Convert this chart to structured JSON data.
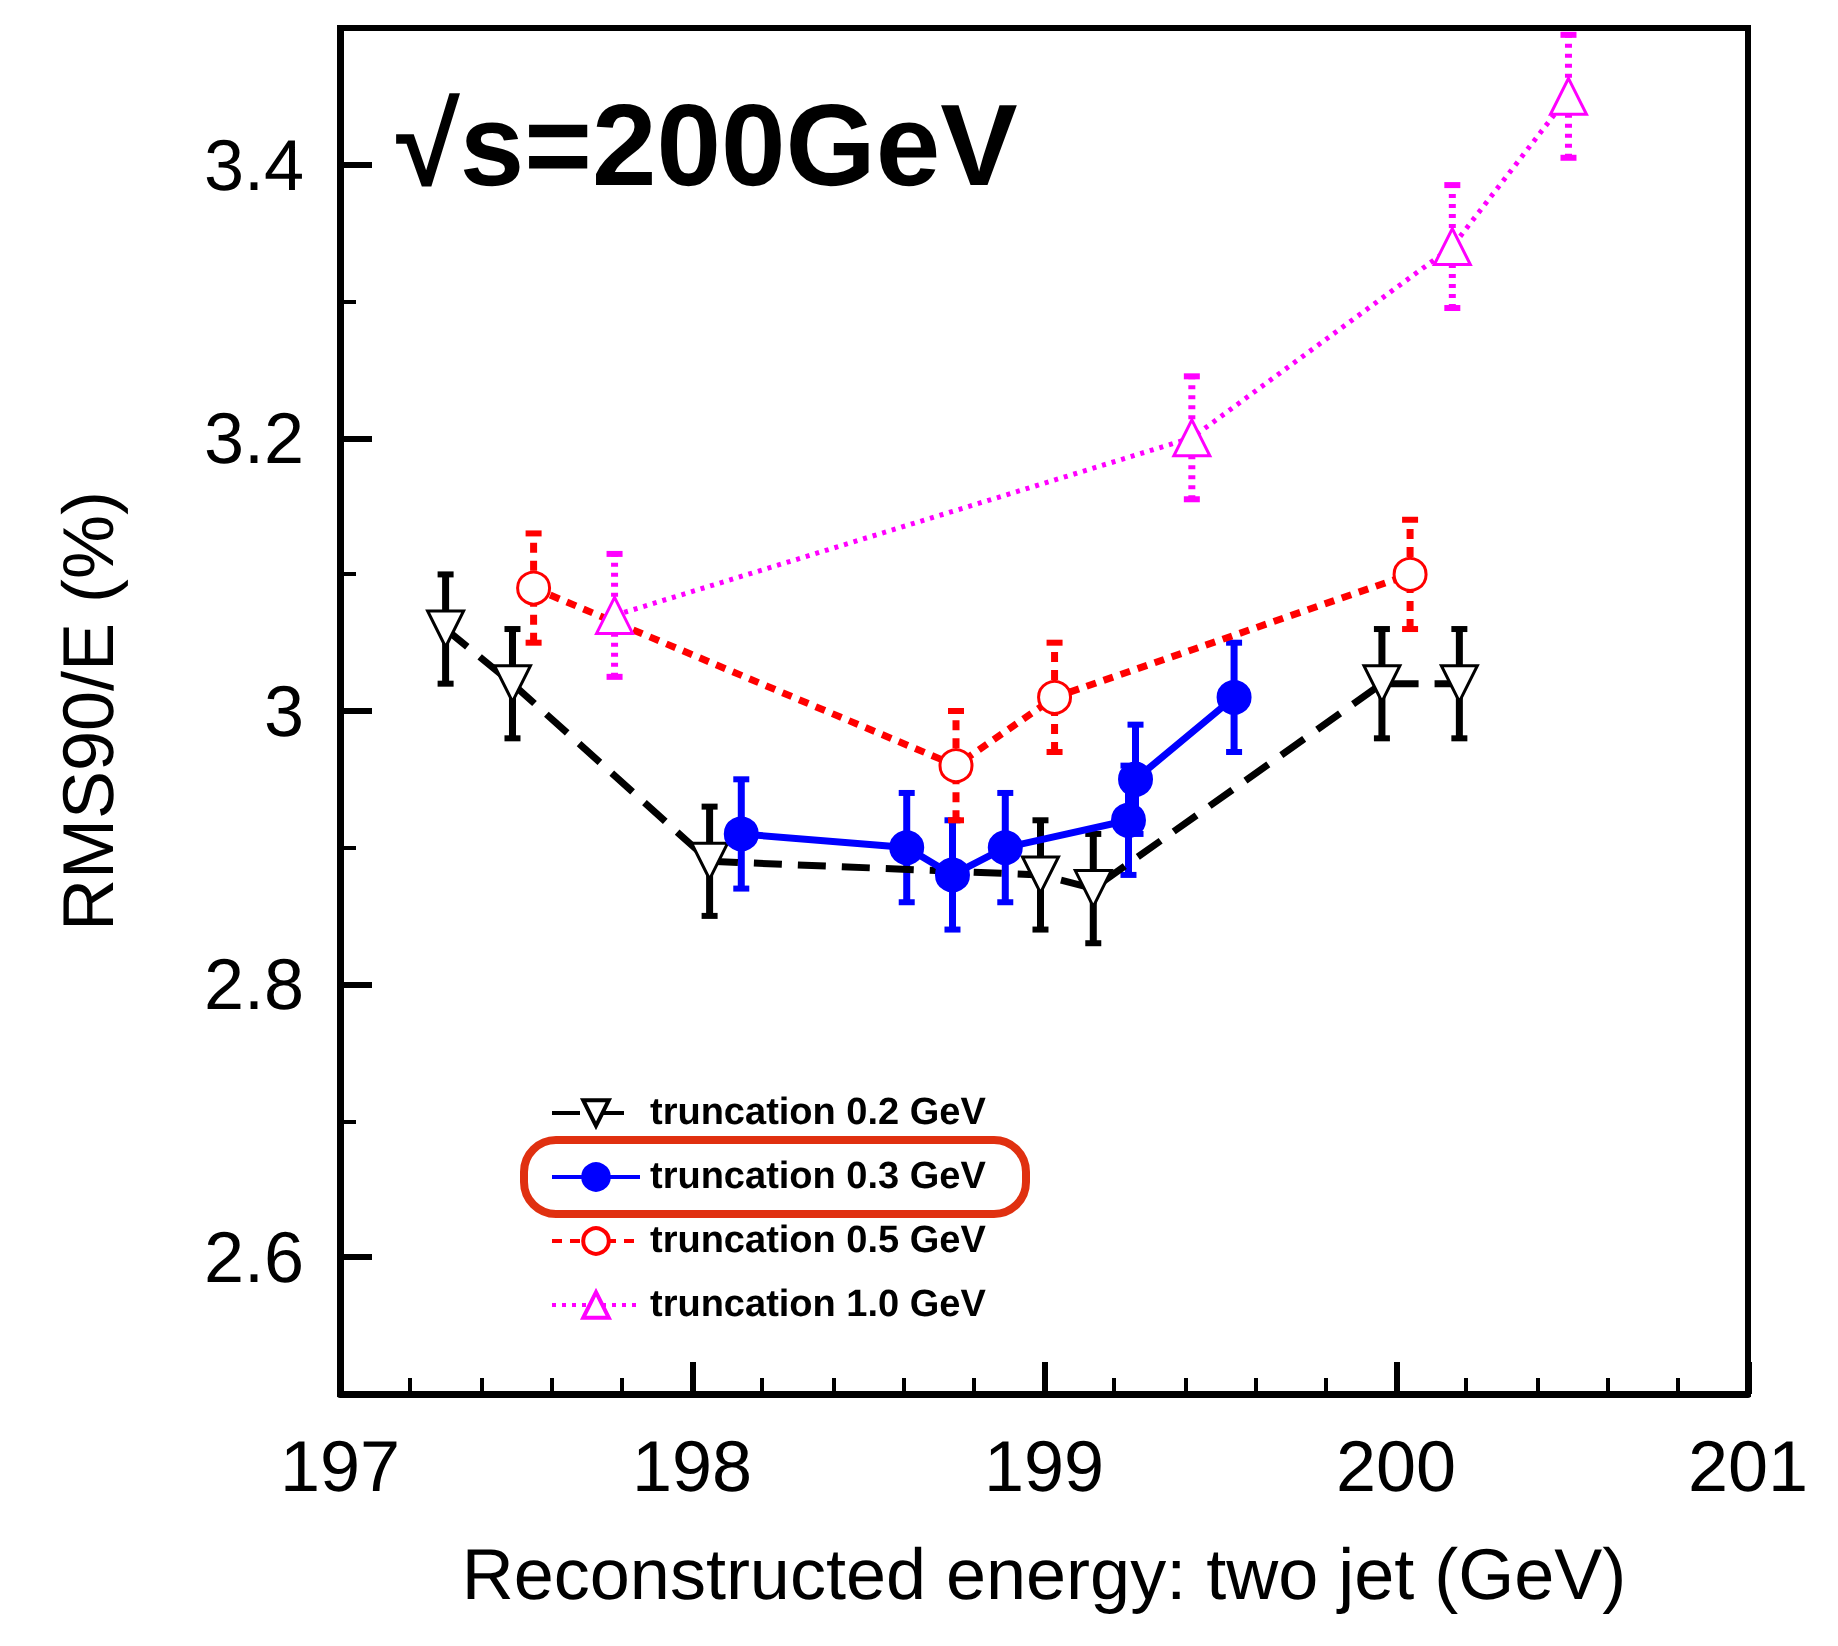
{
  "chart_data": {
    "type": "line",
    "xlabel": "Reconstructed energy: two jet (GeV)",
    "ylabel": "RMS90/E (%)",
    "annotations": [
      "√s=200GeV"
    ],
    "xlim": [
      197,
      201
    ],
    "xticks": [
      197,
      198,
      199,
      200,
      201
    ],
    "ylim": [
      2.5,
      3.5
    ],
    "yticks": [
      2.6,
      2.8,
      3,
      3.2,
      3.4
    ],
    "grid": false,
    "legend": "bottom left",
    "series": [
      {
        "name": "truncation 0.2 GeV",
        "color": "#000000",
        "marker": "triangle",
        "line_style": "dashed",
        "x": [
          197.3,
          197.49,
          198.05,
          198.99,
          199.14,
          199.96,
          200.18
        ],
        "values": [
          3.06,
          3.02,
          2.89,
          2.88,
          2.87,
          3.02,
          3.02
        ],
        "errors": [
          0.04,
          0.04,
          0.04,
          0.04,
          0.04,
          0.04,
          0.04
        ]
      },
      {
        "name": "truncation 0.3 GeV",
        "color": "#0000ff",
        "marker": "circle",
        "line_style": "solid",
        "x": [
          198.14,
          198.61,
          198.74,
          198.89,
          199.24,
          199.26,
          199.54
        ],
        "values": [
          2.91,
          2.9,
          2.88,
          2.9,
          2.92,
          2.95,
          3.01
        ],
        "errors": [
          0.04,
          0.04,
          0.04,
          0.04,
          0.04,
          0.04,
          0.04
        ]
      },
      {
        "name": "truncation 0.5 GeV",
        "color": "#ff0000",
        "marker": "circle",
        "line_style": "dashed",
        "x": [
          197.55,
          198.75,
          199.03,
          200.04
        ],
        "values": [
          3.09,
          2.96,
          3.01,
          3.1
        ],
        "errors": [
          0.04,
          0.04,
          0.04,
          0.04
        ]
      },
      {
        "name": "truncation 1.0 GeV",
        "color": "#ff00ff",
        "marker": "triangle",
        "line_style": "dotted",
        "x": [
          197.78,
          199.42,
          200.16,
          200.49
        ],
        "values": [
          3.07,
          3.2,
          3.34,
          3.45
        ],
        "errors": [
          0.045,
          0.045,
          0.045,
          0.045
        ]
      }
    ]
  }
}
